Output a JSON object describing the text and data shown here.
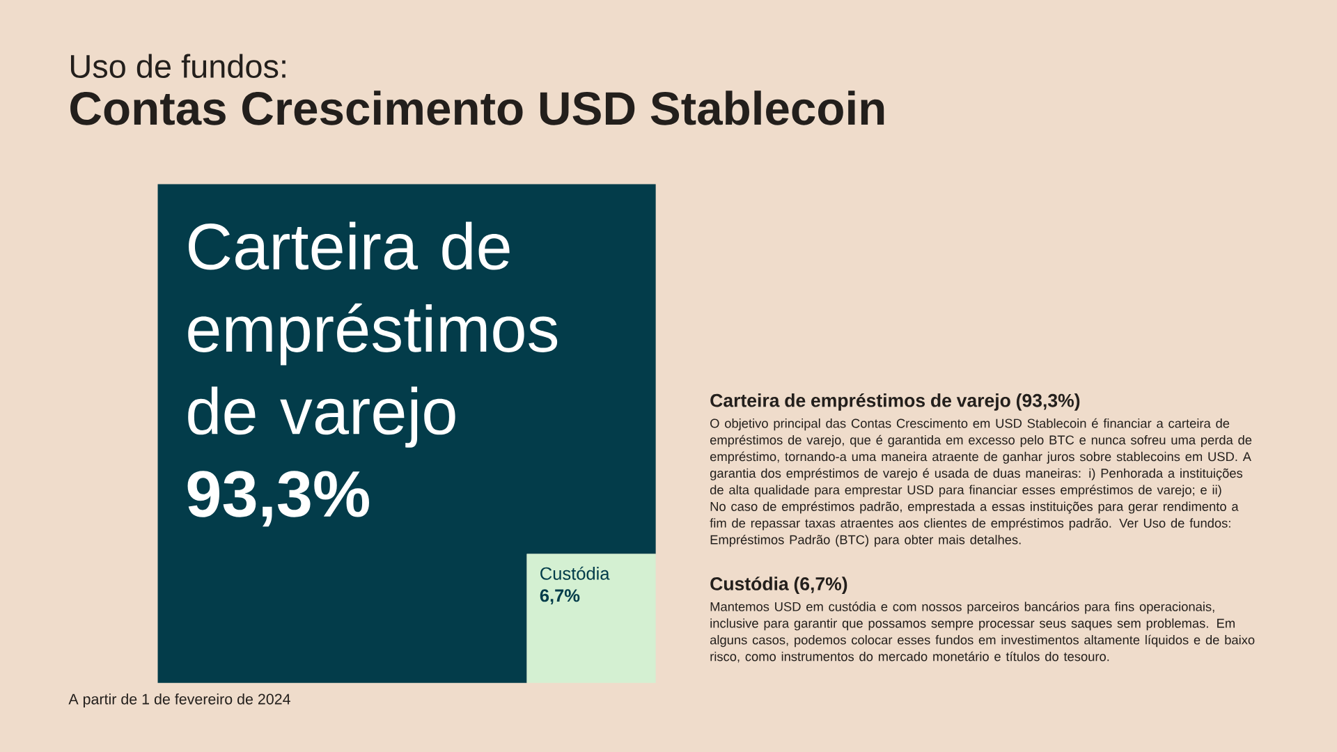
{
  "chart_data": {
    "type": "other",
    "subtitle": "Uso de fundos:",
    "title": "Contas Crescimento USD Stablecoin",
    "categories": [
      "Carteira de empréstimos de varejo",
      "Custódia"
    ],
    "values": [
      93.3,
      6.7
    ],
    "value_labels": [
      "93,3%",
      "6,7%"
    ],
    "colors": [
      "#033c4a",
      "#d4f0d2"
    ],
    "annotations": [
      "A partir de 1 de fevereiro de 2024",
      "Carteira de empréstimos de varejo (93,3%)",
      "O objetivo principal das Contas Crescimento em USD Stablecoin é financiar a carteira de empréstimos de varejo, que é garantida em excesso pelo BTC e nunca sofreu uma perda de empréstimo, tornando-a uma maneira atraente de ganhar juros sobre stablecoins em USD. A garantia dos empréstimos de varejo é usada de duas maneiras: i) Penhorada a instituições de alta qualidade para emprestar USD para financiar esses empréstimos de varejo; e ii) No caso de empréstimos padrão, emprestada a essas instituições para gerar rendimento a fim de repassar taxas atraentes aos clientes de empréstimos padrão. Ver Uso de fundos: Empréstimos Padrão (BTC) para obter mais detalhes.",
      "Custódia (6,7%)",
      "Mantemos USD em custódia e com nossos parceiros bancários para fins operacionais, inclusive para garantir que possamos sempre processar seus saques sem problemas. Em alguns casos, podemos colocar esses fundos em investimentos altamente líquidos e de baixo risco, como instrumentos do mercado monetário e títulos do tesouro."
    ]
  }
}
